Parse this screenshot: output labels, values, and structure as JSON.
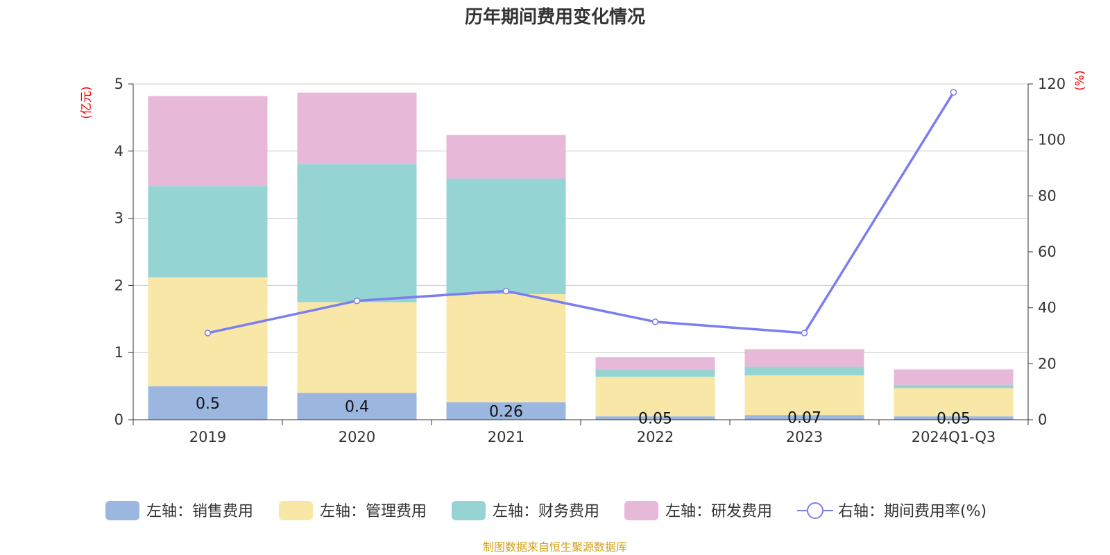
{
  "colors": {
    "sales": "#9bb7e0",
    "admin": "#f8e7a7",
    "finance": "#96d4d4",
    "rnd": "#e8b8d8",
    "rate_line": "#7b7ef0",
    "unit_red": "#ff0000",
    "source": "#d4a017",
    "grid": "#cccccc",
    "axis": "#333333"
  },
  "chart_data": {
    "type": "bar",
    "title": "历年期间费用变化情况",
    "categories": [
      "2019",
      "2020",
      "2021",
      "2022",
      "2023",
      "2024Q1-Q3"
    ],
    "left_axis": {
      "unit": "(亿元)",
      "ylim": [
        0,
        5
      ],
      "ticks": [
        "0",
        "1",
        "2",
        "3",
        "4",
        "5"
      ]
    },
    "right_axis": {
      "unit": "(%)",
      "ylim": [
        0,
        120
      ],
      "ticks": [
        "0",
        "20",
        "40",
        "60",
        "80",
        "100",
        "120"
      ]
    },
    "series": [
      {
        "name": "左轴：销售费用",
        "key": "sales",
        "axis": "left",
        "type": "bar",
        "values": [
          0.5,
          0.4,
          0.26,
          0.05,
          0.07,
          0.05
        ],
        "labels": [
          "0.5",
          "0.4",
          "0.26",
          "0.05",
          "0.07",
          "0.05"
        ]
      },
      {
        "name": "左轴：管理费用",
        "key": "admin",
        "axis": "left",
        "type": "bar",
        "values": [
          1.62,
          1.35,
          1.61,
          0.59,
          0.59,
          0.42
        ]
      },
      {
        "name": "左轴：财务费用",
        "key": "finance",
        "axis": "left",
        "type": "bar",
        "values": [
          1.36,
          2.06,
          1.72,
          0.11,
          0.13,
          0.05
        ]
      },
      {
        "name": "左轴：研发费用",
        "key": "rnd",
        "axis": "left",
        "type": "bar",
        "values": [
          1.34,
          1.06,
          0.65,
          0.18,
          0.26,
          0.23
        ]
      },
      {
        "name": "右轴：期间费用率(%)",
        "key": "rate_line",
        "axis": "right",
        "type": "line",
        "values": [
          31,
          42.5,
          46,
          35,
          31,
          117
        ]
      }
    ],
    "grid": true,
    "legend_position": "bottom",
    "source_note": "制图数据来自恒生聚源数据库"
  }
}
